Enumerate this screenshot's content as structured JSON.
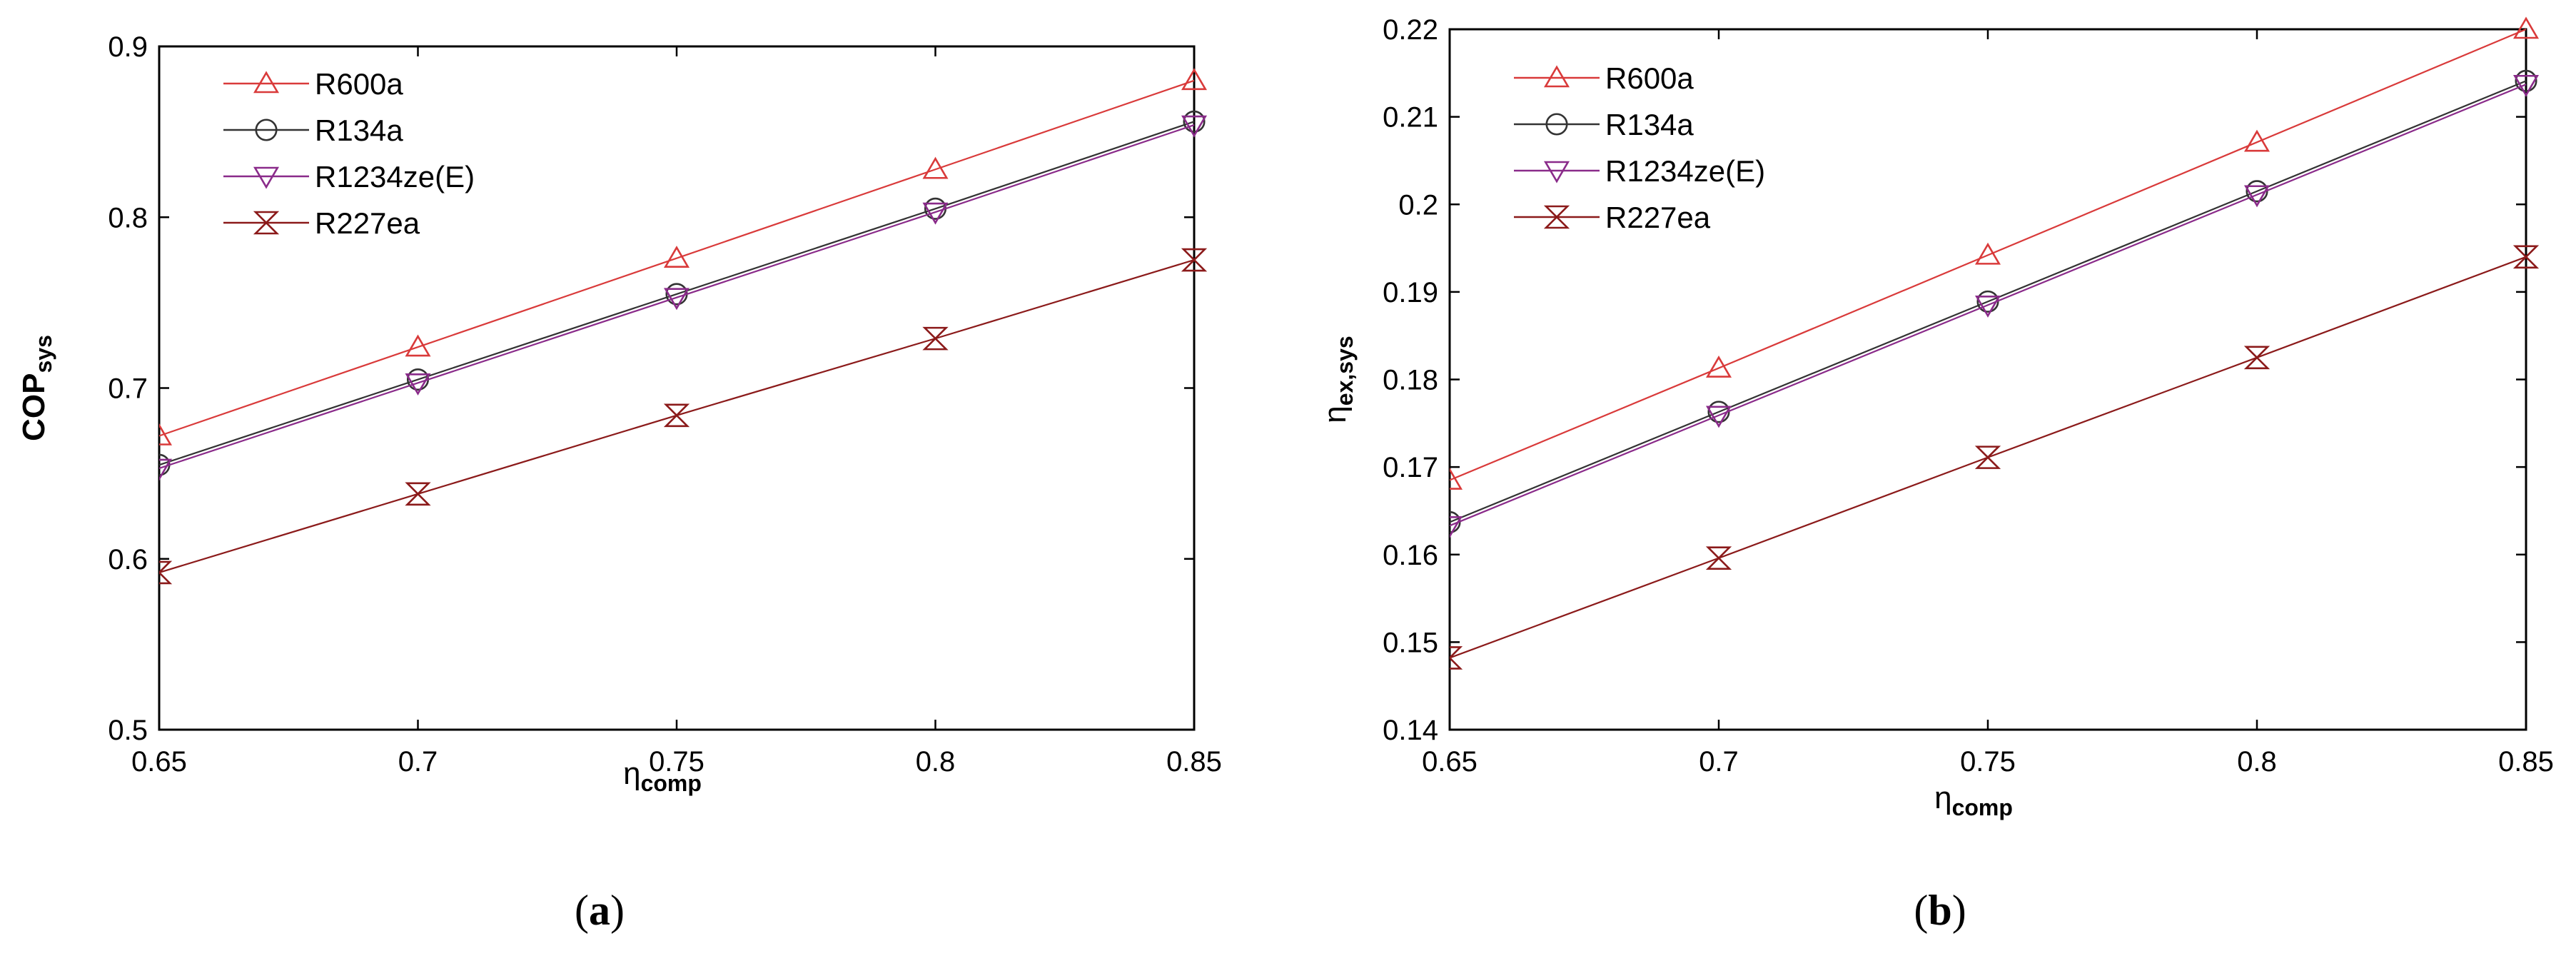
{
  "chart_data": [
    {
      "type": "line",
      "panel_label": "a",
      "x": [
        0.65,
        0.7,
        0.75,
        0.8,
        0.85
      ],
      "xtick_labels": [
        "0.65",
        "0.7",
        "0.75",
        "0.8",
        "0.85"
      ],
      "ytick_labels": [
        "0.5",
        "0.6",
        "0.7",
        "0.8",
        "0.9"
      ],
      "xlim": [
        0.65,
        0.85
      ],
      "ylim": [
        0.5,
        0.9
      ],
      "yticks": [
        0.5,
        0.6,
        0.7,
        0.8,
        0.9
      ],
      "xlabel": "η",
      "xlabel_sub": "comp",
      "ylabel": "COP",
      "ylabel_sub": "sys",
      "series": [
        {
          "name": "R600a",
          "marker": "triangle-up",
          "color": "#d93a3a",
          "values": [
            0.672,
            0.724,
            0.776,
            0.828,
            0.88
          ]
        },
        {
          "name": "R134a",
          "marker": "circle",
          "color": "#333333",
          "values": [
            0.655,
            0.705,
            0.755,
            0.805,
            0.856
          ]
        },
        {
          "name": "R1234ze(E)",
          "marker": "triangle-down",
          "color": "#8a2b8a",
          "values": [
            0.653,
            0.703,
            0.753,
            0.803,
            0.854
          ]
        },
        {
          "name": "R227ea",
          "marker": "hourglass",
          "color": "#8b1a1a",
          "values": [
            0.592,
            0.638,
            0.684,
            0.729,
            0.775
          ]
        }
      ]
    },
    {
      "type": "line",
      "panel_label": "b",
      "x": [
        0.65,
        0.7,
        0.75,
        0.8,
        0.85
      ],
      "xtick_labels": [
        "0.65",
        "0.7",
        "0.75",
        "0.8",
        "0.85"
      ],
      "ytick_labels": [
        "0.14",
        "0.15",
        "0.16",
        "0.17",
        "0.18",
        "0.19",
        "0.2",
        "0.21",
        "0.22"
      ],
      "xlim": [
        0.65,
        0.85
      ],
      "ylim": [
        0.14,
        0.22
      ],
      "yticks": [
        0.14,
        0.15,
        0.16,
        0.17,
        0.18,
        0.19,
        0.2,
        0.21,
        0.22
      ],
      "xlabel": "η",
      "xlabel_sub": "comp",
      "ylabel": "η",
      "ylabel_sub": "ex,sys",
      "series": [
        {
          "name": "R600a",
          "marker": "triangle-up",
          "color": "#d93a3a",
          "values": [
            0.1685,
            0.1813,
            0.1942,
            0.2071,
            0.22
          ]
        },
        {
          "name": "R134a",
          "marker": "circle",
          "color": "#333333",
          "values": [
            0.1637,
            0.1763,
            0.1889,
            0.2015,
            0.2141
          ]
        },
        {
          "name": "R1234ze(E)",
          "marker": "triangle-down",
          "color": "#8a2b8a",
          "values": [
            0.1633,
            0.1759,
            0.1885,
            0.2011,
            0.2137
          ]
        },
        {
          "name": "R227ea",
          "marker": "hourglass",
          "color": "#8b1a1a",
          "values": [
            0.1482,
            0.1596,
            0.1711,
            0.1825,
            0.194
          ]
        }
      ]
    }
  ]
}
